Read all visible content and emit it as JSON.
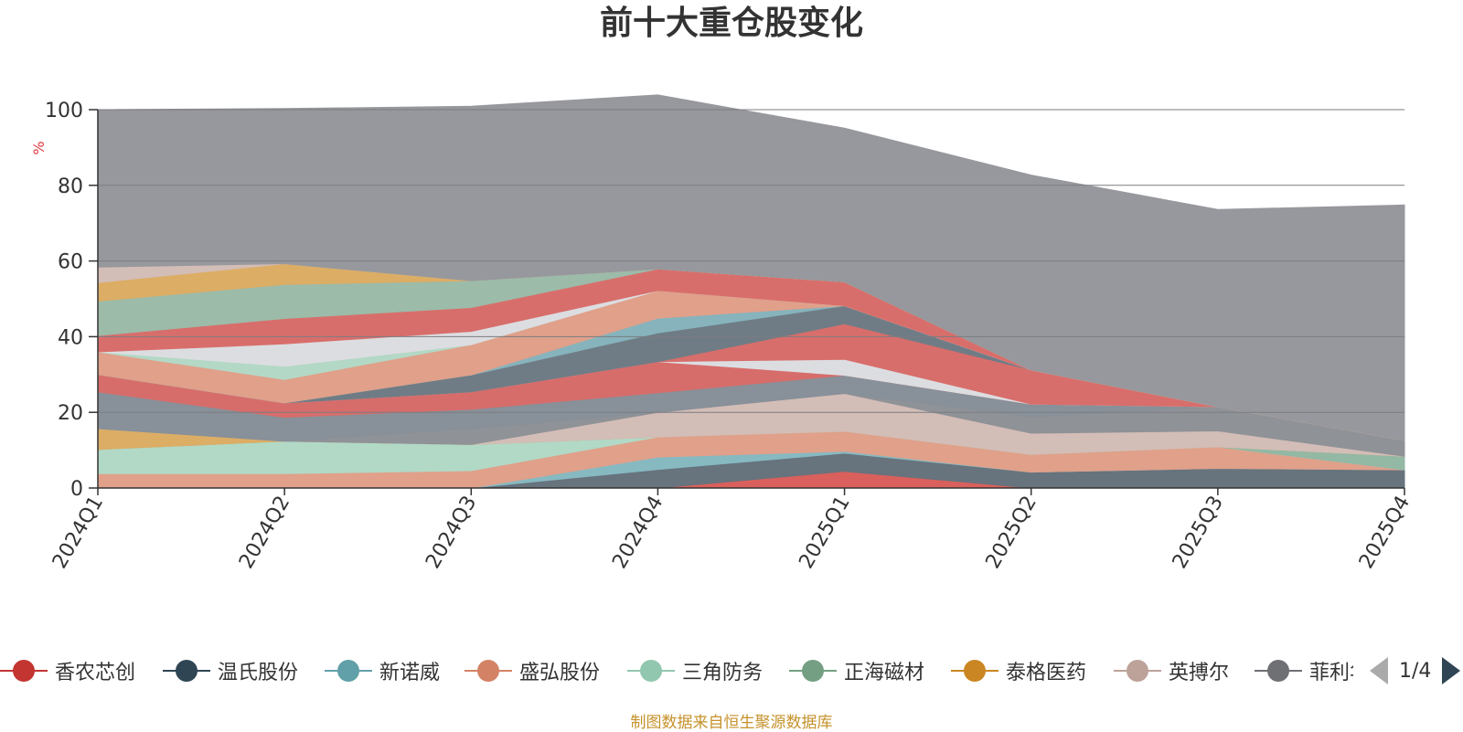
{
  "chart_data": {
    "type": "area",
    "stacked": true,
    "title": "前十大重仓股变化",
    "ylabel": "%",
    "ylim": [
      0,
      100
    ],
    "yticks": [
      0,
      20,
      40,
      60,
      80,
      100
    ],
    "categories": [
      "2024Q1",
      "2024Q2",
      "2024Q3",
      "2024Q4",
      "2025Q1",
      "2025Q2",
      "2025Q3",
      "2025Q4"
    ],
    "grid": true,
    "series": [
      {
        "name": "香农芯创",
        "color": "#d9605c",
        "values": [
          0,
          0,
          0,
          0,
          4.4,
          0,
          0,
          0
        ]
      },
      {
        "name": "温氏股份",
        "color": "#67737d",
        "values": [
          0,
          0,
          0,
          4.9,
          4.8,
          4.2,
          5.2,
          4.8
        ]
      },
      {
        "name": "新诺威",
        "color": "#87b9c1",
        "values": [
          0,
          0,
          0,
          3.3,
          0.5,
          0,
          0,
          0
        ]
      },
      {
        "name": "盛弘股份",
        "color": "#e0a08a",
        "values": [
          3.8,
          3.8,
          4.6,
          5.3,
          5.3,
          4.7,
          5.7,
          0
        ]
      },
      {
        "name": "三角防务",
        "color": "#b1d9c6",
        "values": [
          6.4,
          8.6,
          6.9,
          0,
          0,
          0,
          0,
          0
        ]
      },
      {
        "name": "正海磁材",
        "color": "#93b8a4",
        "values": [
          0,
          0,
          0,
          0,
          0,
          0,
          0,
          3.6
        ]
      },
      {
        "name": "泰格医药",
        "color": "#dcad65",
        "values": [
          5.5,
          0,
          0,
          0,
          0,
          0,
          0,
          0
        ]
      },
      {
        "name": "英搏尔",
        "color": "#d3bdb7",
        "values": [
          0,
          0,
          0,
          6.5,
          10.0,
          5.6,
          4.2,
          0
        ]
      },
      {
        "name": "菲利华",
        "color": "#8f9297",
        "values": [
          0,
          0,
          4.2,
          0,
          0,
          4.3,
          6.4,
          4.2
        ]
      },
      {
        "name": "",
        "color": "#889099",
        "values": [
          9.7,
          6.3,
          5.1,
          5.2,
          4.8,
          3.4,
          0,
          0
        ]
      },
      {
        "name": "",
        "color": "#d66d6b",
        "values": [
          4.6,
          3.8,
          4.6,
          8.2,
          0,
          0,
          0,
          0
        ]
      },
      {
        "name": "",
        "color": "#dcdde1",
        "values": [
          0,
          0,
          0,
          0,
          4.2,
          0,
          0,
          0
        ]
      },
      {
        "name": "",
        "color": "#d86e6b",
        "values": [
          0,
          0,
          0,
          0,
          9.4,
          9.0,
          0,
          0
        ]
      },
      {
        "name": "",
        "color": "#6f7c86",
        "values": [
          0,
          0,
          4.5,
          7.6,
          4.8,
          0,
          0,
          0
        ]
      },
      {
        "name": "",
        "color": "#87b3bc",
        "values": [
          0,
          0,
          0,
          3.9,
          0,
          0,
          0,
          0
        ]
      },
      {
        "name": "",
        "color": "#e0a08a",
        "values": [
          6.0,
          6.2,
          8.0,
          7.3,
          0,
          0,
          0,
          0
        ]
      },
      {
        "name": "",
        "color": "#b3d8c5",
        "values": [
          0,
          3.5,
          0,
          0,
          0,
          0,
          0,
          0
        ]
      },
      {
        "name": "",
        "color": "#dcdde1",
        "values": [
          0,
          5.9,
          3.5,
          0,
          0,
          0,
          0,
          0
        ]
      },
      {
        "name": "",
        "color": "#d86e6b",
        "values": [
          4.3,
          6.7,
          6.3,
          5.7,
          6.3,
          0,
          0,
          0
        ]
      },
      {
        "name": "",
        "color": "#9cbba9",
        "values": [
          9.1,
          9.0,
          7.1,
          0,
          0,
          0,
          0,
          0
        ]
      },
      {
        "name": "",
        "color": "#dcad65",
        "values": [
          4.9,
          5.5,
          0,
          0,
          0,
          0,
          0,
          0
        ]
      },
      {
        "name": "",
        "color": "#d3bdb7",
        "values": [
          4.1,
          0,
          0,
          0,
          0,
          0,
          0,
          0
        ]
      },
      {
        "name": "",
        "color": "#96989d",
        "values": [
          41.6,
          41.0,
          46.1,
          46.0,
          40.6,
          51.5,
          52.1,
          62.2
        ]
      }
    ]
  },
  "legend": {
    "items": [
      {
        "name": "香农芯创",
        "color": "#c23531"
      },
      {
        "name": "温氏股份",
        "color": "#2f4554"
      },
      {
        "name": "新诺威",
        "color": "#61a0a8"
      },
      {
        "name": "盛弘股份",
        "color": "#d48265"
      },
      {
        "name": "三角防务",
        "color": "#91c7ae"
      },
      {
        "name": "正海磁材",
        "color": "#749f83"
      },
      {
        "name": "泰格医药",
        "color": "#ca8622"
      },
      {
        "name": "英搏尔",
        "color": "#bda29a"
      },
      {
        "name": "菲利华",
        "color": "#6e7074"
      }
    ],
    "page_text": "1/4"
  },
  "source_note": "制图数据来自恒生聚源数据库",
  "colors": {
    "axis": "#333333",
    "grid": "#7a7c80",
    "ylabel": "#e0393e",
    "source_note": "#c5922b"
  }
}
